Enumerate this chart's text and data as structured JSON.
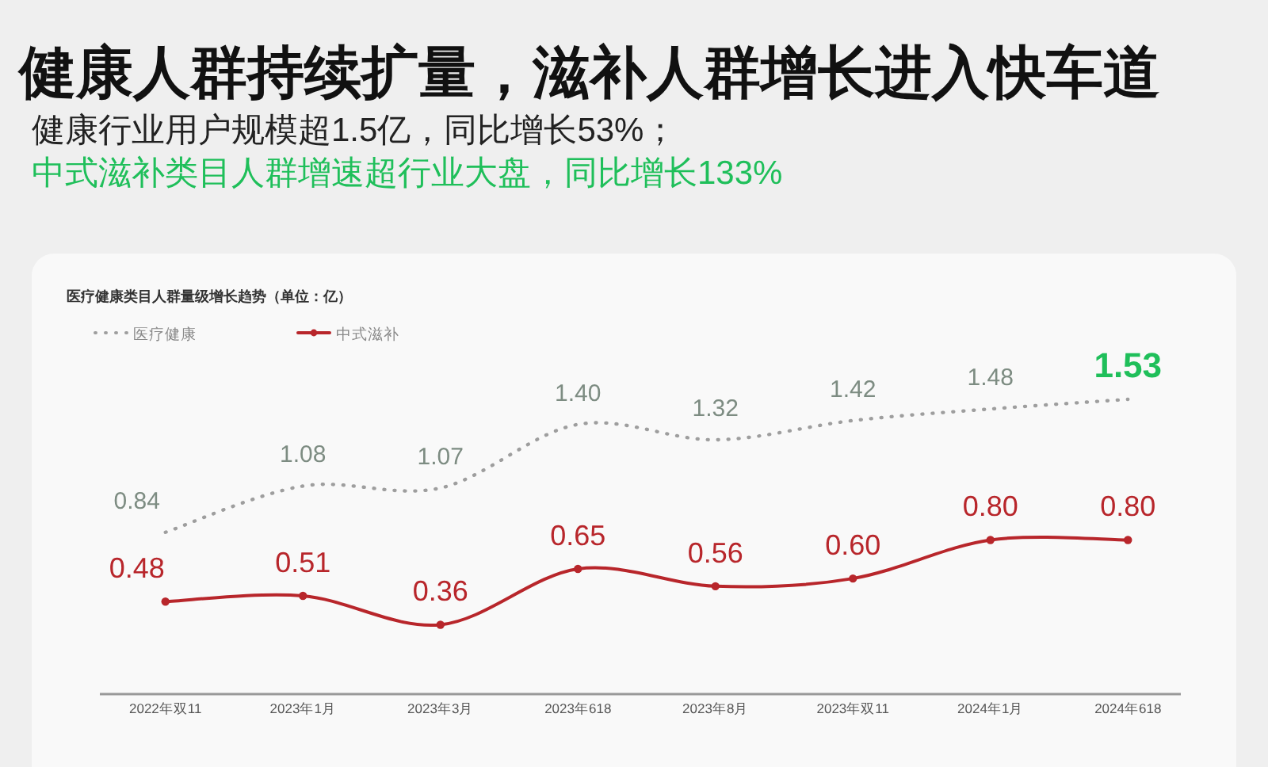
{
  "chart_data": {
    "type": "line",
    "title": "健康人群持续扩量，滋补人群增长进入快车道",
    "subtitle": "医疗健康类目人群量级增长趋势（单位：亿）",
    "annotations": [
      "健康行业用户规模超1.5亿，同比增长53%；",
      "中式滋补类目人群增速超行业大盘，同比增长133%"
    ],
    "categories": [
      "2022年双11",
      "2023年1月",
      "2023年3月",
      "2023年618",
      "2023年8月",
      "2023年双11",
      "2024年1月",
      "2024年618"
    ],
    "series": [
      {
        "name": "医疗健康",
        "color": "#9e9e9e",
        "line_style": "dotted",
        "marker": "none",
        "values": [
          0.84,
          1.08,
          1.07,
          1.4,
          1.32,
          1.42,
          1.48,
          1.53
        ],
        "value_labels": [
          "0.84",
          "1.08",
          "1.07",
          "1.40",
          "1.32",
          "1.42",
          "1.48",
          "1.53"
        ]
      },
      {
        "name": "中式滋补",
        "color": "#b8262b",
        "line_style": "solid",
        "marker": "circle",
        "values": [
          0.48,
          0.51,
          0.36,
          0.65,
          0.56,
          0.6,
          0.8,
          0.8
        ],
        "value_labels": [
          "0.48",
          "0.51",
          "0.36",
          "0.65",
          "0.56",
          "0.60",
          "0.80",
          "0.80"
        ]
      }
    ],
    "tick_labels": "x",
    "legend": "top left"
  }
}
